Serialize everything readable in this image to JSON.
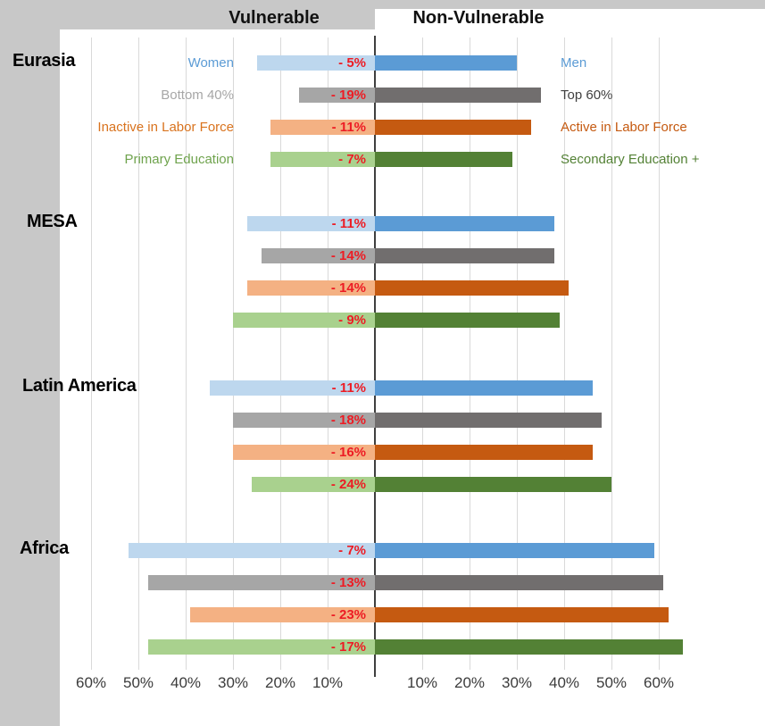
{
  "chart_data": {
    "type": "bar",
    "subtype": "diverging-horizontal-tornado",
    "title_left": "Vulnerable",
    "title_right": "Non-Vulnerable",
    "unit": "%",
    "grid": true,
    "axis_ticks_left": [
      "60%",
      "50%",
      "40%",
      "30%",
      "20%",
      "10%"
    ],
    "axis_ticks_right": [
      "10%",
      "20%",
      "30%",
      "40%",
      "50%",
      "60%"
    ],
    "xlim": [
      -60,
      60
    ],
    "gap_label_color": "#ED1C24",
    "categories": [
      {
        "id": "gender",
        "left_label": "Women",
        "right_label": "Men",
        "light_color": "#BDD7EE",
        "dark_color": "#5B9BD5",
        "left_label_color": "#5B9BD5",
        "right_label_color": "#5B9BD5"
      },
      {
        "id": "income",
        "left_label": "Bottom 40%",
        "right_label": "Top 60%",
        "light_color": "#A6A6A6",
        "dark_color": "#716E6E",
        "left_label_color": "#A6A6A6",
        "right_label_color": "#404040"
      },
      {
        "id": "labor",
        "left_label": "Inactive in Labor Force",
        "right_label": "Active in Labor Force",
        "light_color": "#F4B183",
        "dark_color": "#C55A11",
        "left_label_color": "#D9731E",
        "right_label_color": "#C55A11"
      },
      {
        "id": "education",
        "left_label": "Primary Education",
        "right_label": "Secondary Education +",
        "light_color": "#A9D18E",
        "dark_color": "#538135",
        "left_label_color": "#6FA34D",
        "right_label_color": "#538135"
      }
    ],
    "regions": [
      {
        "name": "Eurasia",
        "rows": [
          {
            "vulnerable_value": 25,
            "nonvulnerable_value": 30,
            "gap_pct": -5,
            "gap_label": "- 5%"
          },
          {
            "vulnerable_value": 16,
            "nonvulnerable_value": 35,
            "gap_pct": -19,
            "gap_label": "- 19%"
          },
          {
            "vulnerable_value": 22,
            "nonvulnerable_value": 33,
            "gap_pct": -11,
            "gap_label": "- 11%"
          },
          {
            "vulnerable_value": 22,
            "nonvulnerable_value": 29,
            "gap_pct": -7,
            "gap_label": "- 7%"
          }
        ]
      },
      {
        "name": "MESA",
        "rows": [
          {
            "vulnerable_value": 27,
            "nonvulnerable_value": 38,
            "gap_pct": -11,
            "gap_label": "- 11%"
          },
          {
            "vulnerable_value": 24,
            "nonvulnerable_value": 38,
            "gap_pct": -14,
            "gap_label": "- 14%"
          },
          {
            "vulnerable_value": 27,
            "nonvulnerable_value": 41,
            "gap_pct": -14,
            "gap_label": "- 14%"
          },
          {
            "vulnerable_value": 30,
            "nonvulnerable_value": 39,
            "gap_pct": -9,
            "gap_label": "- 9%"
          }
        ]
      },
      {
        "name": "Latin America",
        "rows": [
          {
            "vulnerable_value": 35,
            "nonvulnerable_value": 46,
            "gap_pct": -11,
            "gap_label": "- 11%"
          },
          {
            "vulnerable_value": 30,
            "nonvulnerable_value": 48,
            "gap_pct": -18,
            "gap_label": "- 18%"
          },
          {
            "vulnerable_value": 30,
            "nonvulnerable_value": 46,
            "gap_pct": -16,
            "gap_label": "- 16%"
          },
          {
            "vulnerable_value": 26,
            "nonvulnerable_value": 50,
            "gap_pct": -24,
            "gap_label": "- 24%"
          }
        ]
      },
      {
        "name": "Africa",
        "rows": [
          {
            "vulnerable_value": 52,
            "nonvulnerable_value": 59,
            "gap_pct": -7,
            "gap_label": "- 7%"
          },
          {
            "vulnerable_value": 48,
            "nonvulnerable_value": 61,
            "gap_pct": -13,
            "gap_label": "- 13%"
          },
          {
            "vulnerable_value": 39,
            "nonvulnerable_value": 62,
            "gap_pct": -23,
            "gap_label": "- 23%"
          },
          {
            "vulnerable_value": 48,
            "nonvulnerable_value": 65,
            "gap_pct": -17,
            "gap_label": "- 17%"
          }
        ]
      }
    ]
  }
}
